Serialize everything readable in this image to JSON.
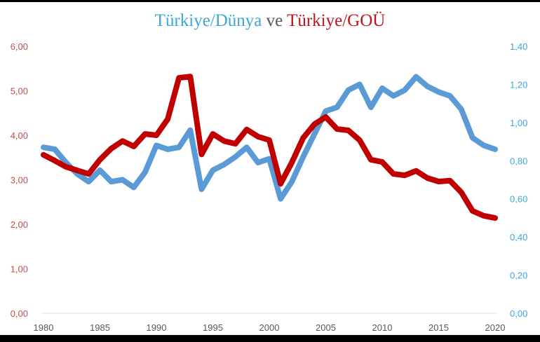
{
  "chart_data": {
    "type": "line",
    "title": "Türkiye/Dünya ve Türkiye/GOÜ",
    "title_parts": [
      {
        "text": "Türkiye/Dünya",
        "color": "#3aa8d8"
      },
      {
        "text": " ve ",
        "color": "#595959"
      },
      {
        "text": "Türkiye/GOÜ",
        "color": "#c0141c"
      }
    ],
    "xlabel": "",
    "ylabel_left": "",
    "ylabel_right": "",
    "x": [
      1980,
      1981,
      1982,
      1983,
      1984,
      1985,
      1986,
      1987,
      1988,
      1989,
      1990,
      1991,
      1992,
      1993,
      1994,
      1995,
      1996,
      1997,
      1998,
      1999,
      2000,
      2001,
      2002,
      2003,
      2004,
      2005,
      2006,
      2007,
      2008,
      2009,
      2010,
      2011,
      2012,
      2013,
      2014,
      2015,
      2016,
      2017,
      2018,
      2019,
      2020
    ],
    "x_ticks": [
      "1980",
      "1985",
      "1990",
      "1995",
      "2000",
      "2005",
      "2010",
      "2015",
      "2020"
    ],
    "y_left_ticks": [
      "0,00",
      "1,00",
      "2,00",
      "3,00",
      "4,00",
      "5,00",
      "6,00"
    ],
    "y_right_ticks": [
      "0,00",
      "0,20",
      "0,40",
      "0,60",
      "0,80",
      "1,00",
      "1,20",
      "1,40"
    ],
    "ylim_left": [
      0,
      6
    ],
    "ylim_right": [
      0,
      1.4
    ],
    "grid": false,
    "legend": "none (series identified by colored title)",
    "series": [
      {
        "name": "Türkiye/GOÜ",
        "axis": "left",
        "color": "#c00000",
        "values": [
          3.56,
          3.43,
          3.29,
          3.21,
          3.13,
          3.45,
          3.7,
          3.87,
          3.75,
          4.03,
          4.0,
          4.36,
          5.29,
          5.32,
          3.57,
          4.03,
          3.87,
          3.81,
          4.13,
          3.97,
          3.89,
          2.91,
          3.39,
          3.94,
          4.25,
          4.41,
          4.14,
          4.11,
          3.89,
          3.45,
          3.4,
          3.13,
          3.1,
          3.2,
          3.04,
          2.96,
          2.98,
          2.72,
          2.3,
          2.19,
          2.14
        ]
      },
      {
        "name": "Türkiye/Dünya",
        "axis": "right",
        "color": "#5b9bd5",
        "values": [
          0.87,
          0.86,
          0.79,
          0.73,
          0.69,
          0.75,
          0.69,
          0.7,
          0.66,
          0.74,
          0.88,
          0.86,
          0.87,
          0.96,
          0.65,
          0.75,
          0.78,
          0.82,
          0.87,
          0.79,
          0.81,
          0.6,
          0.69,
          0.82,
          0.94,
          1.06,
          1.08,
          1.17,
          1.2,
          1.08,
          1.18,
          1.14,
          1.17,
          1.24,
          1.19,
          1.16,
          1.14,
          1.07,
          0.92,
          0.88,
          0.86
        ]
      }
    ]
  }
}
